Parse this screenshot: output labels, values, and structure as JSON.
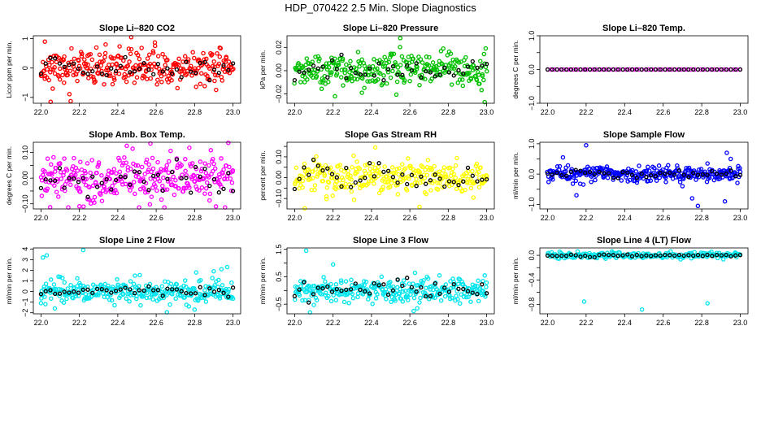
{
  "figure": {
    "title": "HDP_070422  2.5 Min. Slope Diagnostics"
  },
  "chart_data": [
    {
      "type": "scatter",
      "title": "Slope Li–820 CO2",
      "ylabel": "Licor ppm per min.",
      "xlim": [
        22.0,
        23.0
      ],
      "ylim": [
        -1.2,
        1.1
      ],
      "xticks": [
        "22.0",
        "22.2",
        "22.4",
        "22.6",
        "22.8",
        "23.0"
      ],
      "yticks": [
        -1,
        0,
        1
      ],
      "ytick_labels": [
        "−1",
        "0",
        "1"
      ],
      "colors": {
        "points": "#ff0000",
        "overlay": "#000000"
      },
      "generator": {
        "seed": 11,
        "n": 300,
        "spread": 0.3,
        "outliers": [
          [
            22.02,
            0.9
          ],
          [
            22.05,
            -1.15
          ],
          [
            22.47,
            1.05
          ],
          [
            22.12,
            -0.5
          ]
        ]
      },
      "overlay_spread": 0.2
    },
    {
      "type": "scatter",
      "title": "Slope Li–820 Pressure",
      "ylabel": "kPa per min.",
      "xlim": [
        22.0,
        23.0
      ],
      "ylim": [
        -0.028,
        0.03
      ],
      "xticks": [
        "22.0",
        "22.2",
        "22.4",
        "22.6",
        "22.8",
        "23.0"
      ],
      "yticks": [
        -0.02,
        0,
        0.02
      ],
      "ytick_labels": [
        "−0.02",
        "0.00",
        "0.02"
      ],
      "colors": {
        "points": "#00c000",
        "overlay": "#000000"
      },
      "generator": {
        "seed": 23,
        "n": 300,
        "spread": 0.007,
        "outliers": [
          [
            22.55,
            0.028
          ],
          [
            22.21,
            -0.022
          ],
          [
            22.35,
            -0.019
          ],
          [
            22.99,
            -0.027
          ],
          [
            22.33,
            0.016
          ]
        ]
      },
      "overlay_spread": 0.004
    },
    {
      "type": "scatter",
      "title": "Slope Li–820 Temp.",
      "ylabel": "degrees C per min.",
      "xlim": [
        22.0,
        23.0
      ],
      "ylim": [
        -1.0,
        1.0
      ],
      "xticks": [
        "22.0",
        "22.2",
        "22.4",
        "22.6",
        "22.8",
        "23.0"
      ],
      "yticks": [
        -1,
        -0.5,
        0,
        0.5,
        1
      ],
      "ytick_labels": [
        "−1.0",
        "",
        "0.0",
        "",
        "1.0"
      ],
      "colors": {
        "points": "#ff00ff",
        "overlay": "#000000"
      },
      "generator": {
        "seed": 5,
        "n": 60,
        "spread": 0.0,
        "outliers": []
      },
      "overlay_spread": 0.0
    },
    {
      "type": "scatter",
      "title": "Slope Amb. Box Temp.",
      "ylabel": "degrees C per min.",
      "xlim": [
        22.0,
        23.0
      ],
      "ylim": [
        -0.12,
        0.14
      ],
      "xticks": [
        "22.0",
        "22.2",
        "22.4",
        "22.6",
        "22.8",
        "23.0"
      ],
      "yticks": [
        -0.1,
        -0.05,
        0,
        0.05,
        0.1
      ],
      "ytick_labels": [
        "−0.10",
        "",
        "0.00",
        "",
        "0.10"
      ],
      "colors": {
        "points": "#ff00ff",
        "overlay": "#000000"
      },
      "generator": {
        "seed": 37,
        "n": 320,
        "spread": 0.045,
        "outliers": [
          [
            22.57,
            0.135
          ],
          [
            22.2,
            -0.11
          ]
        ]
      },
      "overlay_spread": 0.03
    },
    {
      "type": "scatter",
      "title": "Slope Gas Stream RH",
      "ylabel": "percent per min.",
      "xlim": [
        22.0,
        23.0
      ],
      "ylim": [
        -0.15,
        0.17
      ],
      "xticks": [
        "22.0",
        "22.2",
        "22.4",
        "22.6",
        "22.8",
        "23.0"
      ],
      "yticks": [
        -0.1,
        -0.05,
        0,
        0.05,
        0.1,
        0.15
      ],
      "ytick_labels": [
        "−0.10",
        "",
        "0.00",
        "",
        "0.10",
        ""
      ],
      "colors": {
        "points": "#ffff00",
        "overlay": "#000000"
      },
      "generator": {
        "seed": 41,
        "n": 300,
        "spread": 0.04,
        "outliers": [
          [
            22.42,
            0.145
          ],
          [
            22.65,
            -0.14
          ]
        ]
      },
      "overlay_spread": 0.035
    },
    {
      "type": "scatter",
      "title": "Slope Sample Flow",
      "ylabel": "ml/min per min.",
      "xlim": [
        22.0,
        23.0
      ],
      "ylim": [
        -1.15,
        1.05
      ],
      "xticks": [
        "22.0",
        "22.2",
        "22.4",
        "22.6",
        "22.8",
        "23.0"
      ],
      "yticks": [
        -1,
        -0.5,
        0,
        0.5,
        1
      ],
      "ytick_labels": [
        "−1.0",
        "",
        "0.0",
        "",
        "1.0"
      ],
      "colors": {
        "points": "#0000ff",
        "overlay": "#000000"
      },
      "generator": {
        "seed": 53,
        "n": 320,
        "spread": 0.12,
        "outliers": [
          [
            22.2,
            0.95
          ],
          [
            22.08,
            0.55
          ],
          [
            22.15,
            -0.7
          ],
          [
            22.75,
            -0.8
          ],
          [
            22.78,
            -1.05
          ],
          [
            22.93,
            0.7
          ],
          [
            22.95,
            0.5
          ],
          [
            22.92,
            -0.9
          ],
          [
            22.7,
            -0.4
          ],
          [
            22.83,
            0.35
          ]
        ]
      },
      "overlay_spread": 0.06
    },
    {
      "type": "scatter",
      "title": "Slope Line 2 Flow",
      "ylabel": "ml/min per min.",
      "xlim": [
        22.0,
        23.0
      ],
      "ylim": [
        -2.1,
        4.1
      ],
      "xticks": [
        "22.0",
        "22.2",
        "22.4",
        "22.6",
        "22.8",
        "23.0"
      ],
      "yticks": [
        -2,
        -1,
        0,
        1,
        2,
        3,
        4
      ],
      "ytick_labels": [
        "−2",
        "−1",
        "0",
        "1",
        "2",
        "3",
        "4"
      ],
      "colors": {
        "points": "#00e5ee",
        "overlay": "#000000"
      },
      "generator": {
        "seed": 67,
        "n": 300,
        "spread": 0.55,
        "outliers": [
          [
            22.01,
            3.2
          ],
          [
            22.03,
            3.4
          ],
          [
            22.22,
            3.9
          ],
          [
            22.0,
            -1.1
          ],
          [
            22.77,
            -1.4
          ],
          [
            22.8,
            -1.7
          ],
          [
            22.94,
            2.1
          ],
          [
            22.97,
            2.3
          ],
          [
            22.9,
            1.9
          ]
        ]
      },
      "overlay_spread": 0.3
    },
    {
      "type": "scatter",
      "title": "Slope Line 3 Flow",
      "ylabel": "ml/min per min.",
      "xlim": [
        22.0,
        23.0
      ],
      "ylim": [
        -0.85,
        1.55
      ],
      "xticks": [
        "22.0",
        "22.2",
        "22.4",
        "22.6",
        "22.8",
        "23.0"
      ],
      "yticks": [
        -0.5,
        0,
        0.5,
        1,
        1.5
      ],
      "ytick_labels": [
        "−0.5",
        "",
        "0.5",
        "",
        "1.5"
      ],
      "colors": {
        "points": "#00e5ee",
        "overlay": "#000000"
      },
      "generator": {
        "seed": 71,
        "n": 300,
        "spread": 0.22,
        "outliers": [
          [
            22.06,
            1.45
          ],
          [
            22.08,
            -0.8
          ],
          [
            22.2,
            0.95
          ],
          [
            22.62,
            -0.75
          ],
          [
            22.99,
            0.55
          ]
        ]
      },
      "overlay_spread": 0.15
    },
    {
      "type": "scatter",
      "title": "Slope Line 4 (LT) Flow",
      "ylabel": "ml/min per min.",
      "xlim": [
        22.0,
        23.0
      ],
      "ylim": [
        -0.95,
        0.12
      ],
      "xticks": [
        "22.0",
        "22.2",
        "22.4",
        "22.6",
        "22.8",
        "23.0"
      ],
      "yticks": [
        -0.8,
        -0.6,
        -0.4,
        -0.2,
        0
      ],
      "ytick_labels": [
        "−0.8",
        "",
        "−0.4",
        "",
        "0.0"
      ],
      "colors": {
        "points": "#00e5ee",
        "overlay": "#000000"
      },
      "generator": {
        "seed": 89,
        "n": 220,
        "spread": 0.025,
        "outliers": [
          [
            22.19,
            -0.75
          ],
          [
            22.49,
            -0.88
          ],
          [
            22.83,
            -0.78
          ]
        ]
      },
      "overlay_spread": 0.012
    }
  ]
}
